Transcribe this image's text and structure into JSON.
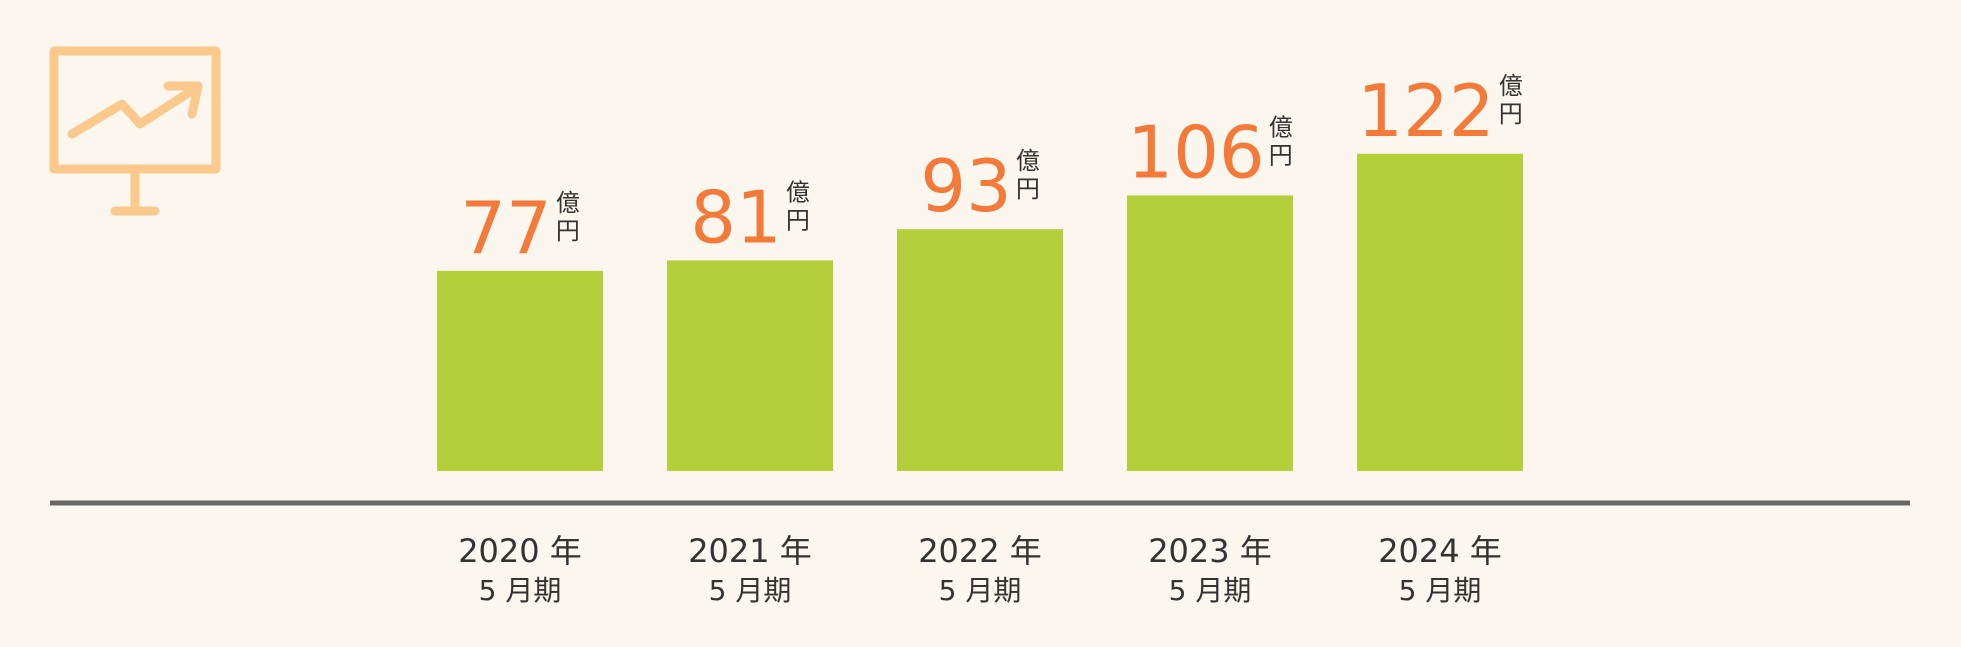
{
  "chart_data": {
    "type": "bar",
    "categories": [
      "2020 年",
      "2021 年",
      "2022 年",
      "2023 年",
      "2024 年"
    ],
    "category_suffix": "5 月期",
    "values": [
      77,
      81,
      93,
      106,
      122
    ],
    "value_unit": [
      "億",
      "円"
    ],
    "color": "#b5cf3b",
    "label_color": "#f47a3a"
  }
}
